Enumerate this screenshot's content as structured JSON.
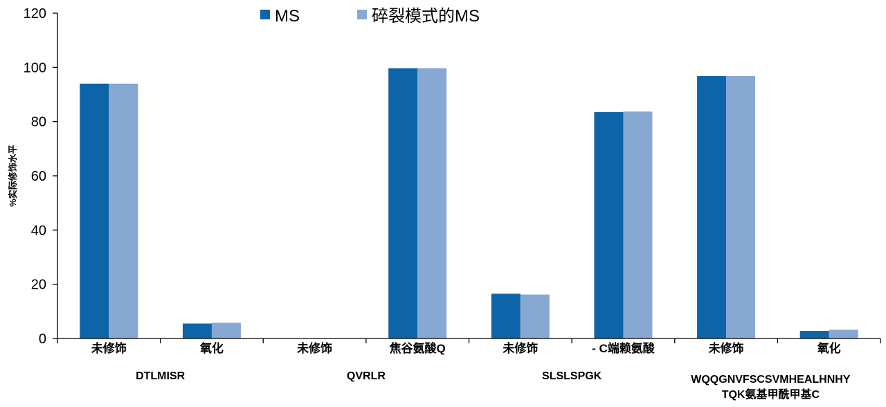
{
  "chart_data": {
    "type": "bar",
    "ylabel": "%实际修饰水平",
    "ylim": [
      0,
      120
    ],
    "yticks": [
      0,
      20,
      40,
      60,
      80,
      100,
      120
    ],
    "grid": false,
    "legend_position": "top",
    "categories": [
      "未修饰",
      "氧化",
      "未修饰",
      "焦谷氨酸Q",
      "未修饰",
      "- C端赖氨酸",
      "未修饰",
      "氧化"
    ],
    "groups": [
      {
        "lines": [
          "DTLMISR"
        ],
        "categories": [
          0,
          1
        ]
      },
      {
        "lines": [
          "QVRLR"
        ],
        "categories": [
          2,
          3
        ]
      },
      {
        "lines": [
          "SLSLSPGK"
        ],
        "categories": [
          4,
          5
        ]
      },
      {
        "lines": [
          "WQQGNVFSCSVMHEALHNHY",
          "TQK氨基甲酰甲基C"
        ],
        "categories": [
          6,
          7
        ]
      }
    ],
    "series": [
      {
        "name": "MS",
        "color": "#0d64a8",
        "values": [
          94,
          5.5,
          0,
          99.7,
          16.5,
          83.5,
          96.8,
          2.8
        ]
      },
      {
        "name": "碎裂模式的MS",
        "color": "#87a8d2",
        "values": [
          94,
          5.8,
          0,
          99.7,
          16.2,
          83.7,
          96.8,
          3.2
        ]
      }
    ]
  }
}
